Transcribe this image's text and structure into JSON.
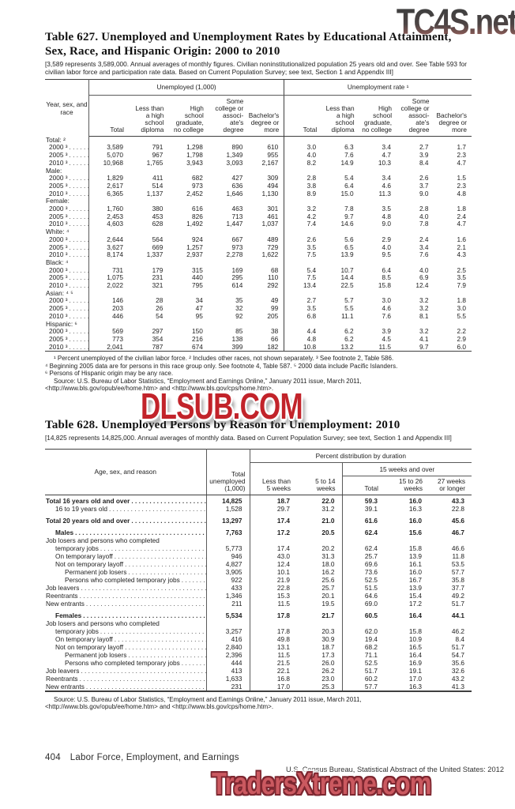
{
  "watermarks": {
    "top": "TC4S.net",
    "middle": "DLSUB.COM",
    "bottom": "TradersXtreme.com"
  },
  "table627": {
    "title": "Table 627. Unemployed and Unemployment Rates by Educational Attainment, Sex, Race, and Hispanic Origin: 2000 to 2010",
    "note": "[3,589 represents 3,589,000. Annual averages of monthly figures. Civilian noninstitutionalized population 25 years old and over. See Table 593 for civilian labor force and participation rate data. Based on Current Population Survey; see text, Section 1 and Appendix III]",
    "stub_header": "Year, sex, and race",
    "group_headers": [
      "Unemployed (1,000)",
      "Unemployment rate ¹"
    ],
    "col_headers": [
      "Total",
      "Less than\na high\nschool\ndiploma",
      "High\nschool\ngraduate,\nno college",
      "Some\ncollege or\nassoci-\nate's\ndegree",
      "Bachelor's\ndegree or\nmore"
    ],
    "rows": [
      {
        "label": "Total: ²",
        "section": true
      },
      {
        "label": "2000 ³",
        "cells": [
          "3,589",
          "791",
          "1,298",
          "890",
          "610",
          "3.0",
          "6.3",
          "3.4",
          "2.7",
          "1.7"
        ]
      },
      {
        "label": "2005 ³",
        "cells": [
          "5,070",
          "967",
          "1,798",
          "1,349",
          "955",
          "4.0",
          "7.6",
          "4.7",
          "3.9",
          "2.3"
        ]
      },
      {
        "label": "2010 ³",
        "cells": [
          "10,968",
          "1,765",
          "3,943",
          "3,093",
          "2,167",
          "8.2",
          "14.9",
          "10.3",
          "8.4",
          "4.7"
        ]
      },
      {
        "label": "Male:",
        "section": true
      },
      {
        "label": "2000 ³",
        "cells": [
          "1,829",
          "411",
          "682",
          "427",
          "309",
          "2.8",
          "5.4",
          "3.4",
          "2.6",
          "1.5"
        ]
      },
      {
        "label": "2005 ³",
        "cells": [
          "2,617",
          "514",
          "973",
          "636",
          "494",
          "3.8",
          "6.4",
          "4.6",
          "3.7",
          "2.3"
        ]
      },
      {
        "label": "2010 ³",
        "cells": [
          "6,365",
          "1,137",
          "2,452",
          "1,646",
          "1,130",
          "8.9",
          "15.0",
          "11.3",
          "9.0",
          "4.8"
        ]
      },
      {
        "label": "Female:",
        "section": true
      },
      {
        "label": "2000 ³",
        "cells": [
          "1,760",
          "380",
          "616",
          "463",
          "301",
          "3.2",
          "7.8",
          "3.5",
          "2.8",
          "1.8"
        ]
      },
      {
        "label": "2005 ³",
        "cells": [
          "2,453",
          "453",
          "826",
          "713",
          "461",
          "4.2",
          "9.7",
          "4.8",
          "4.0",
          "2.4"
        ]
      },
      {
        "label": "2010 ³",
        "cells": [
          "4,603",
          "628",
          "1,492",
          "1,447",
          "1,037",
          "7.4",
          "14.6",
          "9.0",
          "7.8",
          "4.7"
        ]
      },
      {
        "label": "White: ⁴",
        "section": true
      },
      {
        "label": "2000 ³",
        "cells": [
          "2,644",
          "564",
          "924",
          "667",
          "489",
          "2.6",
          "5.6",
          "2.9",
          "2.4",
          "1.6"
        ]
      },
      {
        "label": "2005 ³",
        "cells": [
          "3,627",
          "669",
          "1,257",
          "973",
          "729",
          "3.5",
          "6.5",
          "4.0",
          "3.4",
          "2.1"
        ]
      },
      {
        "label": "2010 ³",
        "cells": [
          "8,174",
          "1,337",
          "2,937",
          "2,278",
          "1,622",
          "7.5",
          "13.9",
          "9.5",
          "7.6",
          "4.3"
        ]
      },
      {
        "label": "Black: ⁴",
        "section": true
      },
      {
        "label": "2000 ³",
        "cells": [
          "731",
          "179",
          "315",
          "169",
          "68",
          "5.4",
          "10.7",
          "6.4",
          "4.0",
          "2.5"
        ]
      },
      {
        "label": "2005 ³",
        "cells": [
          "1,075",
          "231",
          "440",
          "295",
          "110",
          "7.5",
          "14.4",
          "8.5",
          "6.9",
          "3.5"
        ]
      },
      {
        "label": "2010 ³",
        "cells": [
          "2,022",
          "321",
          "795",
          "614",
          "292",
          "13.4",
          "22.5",
          "15.8",
          "12.4",
          "7.9"
        ]
      },
      {
        "label": "Asian: ⁴ ⁵",
        "section": true
      },
      {
        "label": "2000 ³",
        "cells": [
          "146",
          "28",
          "34",
          "35",
          "49",
          "2.7",
          "5.7",
          "3.0",
          "3.2",
          "1.8"
        ]
      },
      {
        "label": "2005 ³",
        "cells": [
          "203",
          "26",
          "47",
          "32",
          "99",
          "3.5",
          "5.5",
          "4.6",
          "3.2",
          "3.0"
        ]
      },
      {
        "label": "2010 ³",
        "cells": [
          "446",
          "54",
          "95",
          "92",
          "205",
          "6.8",
          "11.1",
          "7.6",
          "8.1",
          "5.5"
        ]
      },
      {
        "label": "Hispanic: ⁶",
        "section": true
      },
      {
        "label": "2000 ³",
        "cells": [
          "569",
          "297",
          "150",
          "85",
          "38",
          "4.4",
          "6.2",
          "3.9",
          "3.2",
          "2.2"
        ]
      },
      {
        "label": "2005 ³",
        "cells": [
          "773",
          "354",
          "216",
          "138",
          "66",
          "4.8",
          "6.2",
          "4.5",
          "4.1",
          "2.9"
        ]
      },
      {
        "label": "2010 ³",
        "cells": [
          "2,041",
          "787",
          "674",
          "399",
          "182",
          "10.8",
          "13.2",
          "11.5",
          "9.7",
          "6.0"
        ]
      }
    ],
    "footnotes": [
      "¹ Percent unemployed of the civilian labor force. ² Includes other races, not shown separately. ³ See footnote 2, Table 586.",
      "⁴ Beginning 2005 data are for persons in this race group only. See footnote 4, Table 587. ⁵ 2000 data include Pacific Islanders.",
      "⁶ Persons of Hispanic origin may be any race."
    ],
    "source": [
      "Source: U.S. Bureau of Labor Statistics, “Employment and Earnings Online,” January 2011 issue, March 2011,",
      "<http://www.bls.gov/opub/ee/home.htm> and <http://www.bls.gov/cps/home.htm>."
    ]
  },
  "table628": {
    "title": "Table 628. Unemployed Persons by Reason for Unemployment: 2010",
    "note": "[14,825 represents 14,825,000. Annual averages of monthly data. Based on Current Population Survey; see text, Section 1 and Appendix III]",
    "stub_header": "Age, sex, and reason",
    "total_header": "Total\nunemployed\n(1,000)",
    "span_header": "Percent distribution by duration",
    "span15_header": "15 weeks and over",
    "col_headers": [
      "Less than\n5 weeks",
      "5 to 14\nweeks",
      "Total",
      "15 to 26\nweeks",
      "27 weeks\nor longer"
    ],
    "rows": [
      {
        "label": "Total 16 years old and over",
        "bold": true,
        "indent": 0,
        "leader": true,
        "cells": [
          "14,825",
          "18.7",
          "22.0",
          "59.3",
          "16.0",
          "43.3"
        ]
      },
      {
        "label": "16 to 19 years old",
        "indent": 1,
        "leader": true,
        "cells": [
          "1,528",
          "29.7",
          "31.2",
          "39.1",
          "16.3",
          "22.8"
        ]
      },
      {
        "label": "Total 20 years old and over",
        "bold": true,
        "indent": 0,
        "leader": true,
        "gap": true,
        "cells": [
          "13,297",
          "17.4",
          "21.0",
          "61.6",
          "16.0",
          "45.6"
        ]
      },
      {
        "label": "Males",
        "bold": true,
        "indent": 1,
        "leader": true,
        "gap": true,
        "cells": [
          "7,763",
          "17.2",
          "20.5",
          "62.4",
          "15.6",
          "46.7"
        ]
      },
      {
        "label": "Job losers and persons who completed",
        "indent": 0,
        "leader": false,
        "cells": null
      },
      {
        "label": "temporary jobs",
        "indent": 1,
        "leader": true,
        "cells": [
          "5,773",
          "17.4",
          "20.2",
          "62.4",
          "15.8",
          "46.6"
        ]
      },
      {
        "label": "On temporary layoff",
        "indent": 1,
        "leader": true,
        "cells": [
          "946",
          "43.0",
          "31.3",
          "25.7",
          "13.9",
          "11.8"
        ]
      },
      {
        "label": "Not on temporary layoff",
        "indent": 1,
        "leader": true,
        "cells": [
          "4,827",
          "12.4",
          "18.0",
          "69.6",
          "16.1",
          "53.5"
        ]
      },
      {
        "label": "Permanent job losers",
        "indent": 2,
        "leader": true,
        "cells": [
          "3,905",
          "10.1",
          "16.2",
          "73.6",
          "16.0",
          "57.7"
        ]
      },
      {
        "label": "Persons who completed temporary jobs",
        "indent": 2,
        "leader": true,
        "cells": [
          "922",
          "21.9",
          "25.6",
          "52.5",
          "16.7",
          "35.8"
        ]
      },
      {
        "label": "Job leavers",
        "indent": 0,
        "leader": true,
        "cells": [
          "433",
          "22.8",
          "25.7",
          "51.5",
          "13.9",
          "37.7"
        ]
      },
      {
        "label": "Reentrants",
        "indent": 0,
        "leader": true,
        "cells": [
          "1,346",
          "15.3",
          "20.1",
          "64.6",
          "15.4",
          "49.2"
        ]
      },
      {
        "label": "New entrants",
        "indent": 0,
        "leader": true,
        "cells": [
          "211",
          "11.5",
          "19.5",
          "69.0",
          "17.2",
          "51.7"
        ]
      },
      {
        "label": "Females",
        "bold": true,
        "indent": 1,
        "leader": true,
        "gap": true,
        "cells": [
          "5,534",
          "17.8",
          "21.7",
          "60.5",
          "16.4",
          "44.1"
        ]
      },
      {
        "label": "Job losers and persons who completed",
        "indent": 0,
        "leader": false,
        "cells": null
      },
      {
        "label": "temporary jobs",
        "indent": 1,
        "leader": true,
        "cells": [
          "3,257",
          "17.8",
          "20.3",
          "62.0",
          "15.8",
          "46.2"
        ]
      },
      {
        "label": "On temporary layoff",
        "indent": 1,
        "leader": true,
        "cells": [
          "416",
          "49.8",
          "30.9",
          "19.4",
          "10.9",
          "8.4"
        ]
      },
      {
        "label": "Not on temporary layoff",
        "indent": 1,
        "leader": true,
        "cells": [
          "2,840",
          "13.1",
          "18.7",
          "68.2",
          "16.5",
          "51.7"
        ]
      },
      {
        "label": "Permanent job losers",
        "indent": 2,
        "leader": true,
        "cells": [
          "2,396",
          "11.5",
          "17.3",
          "71.1",
          "16.4",
          "54.7"
        ]
      },
      {
        "label": "Persons who completed temporary jobs",
        "indent": 2,
        "leader": true,
        "cells": [
          "444",
          "21.5",
          "26.0",
          "52.5",
          "16.9",
          "35.6"
        ]
      },
      {
        "label": "Job leavers",
        "indent": 0,
        "leader": true,
        "cells": [
          "413",
          "22.1",
          "26.2",
          "51.7",
          "19.1",
          "32.6"
        ]
      },
      {
        "label": "Reentrants",
        "indent": 0,
        "leader": true,
        "cells": [
          "1,633",
          "16.8",
          "23.0",
          "60.2",
          "17.0",
          "43.2"
        ]
      },
      {
        "label": "New entrants",
        "indent": 0,
        "leader": true,
        "cells": [
          "231",
          "17.0",
          "25.3",
          "57.7",
          "16.3",
          "41.3"
        ]
      }
    ],
    "source": [
      "Source: U.S. Bureau of Labor Statistics, “Employment and Earnings Online,” January 2011 issue, March 2011,",
      "<http://www.bls.gov/opub/ee/home.htm> and <http://www.bls.gov/cps/home.htm>."
    ]
  },
  "footer": {
    "page_number": "404",
    "section_title": "Labor Force, Employment, and Earnings",
    "census_line": "U.S. Census Bureau, Statistical Abstract of the United States: 2012"
  }
}
